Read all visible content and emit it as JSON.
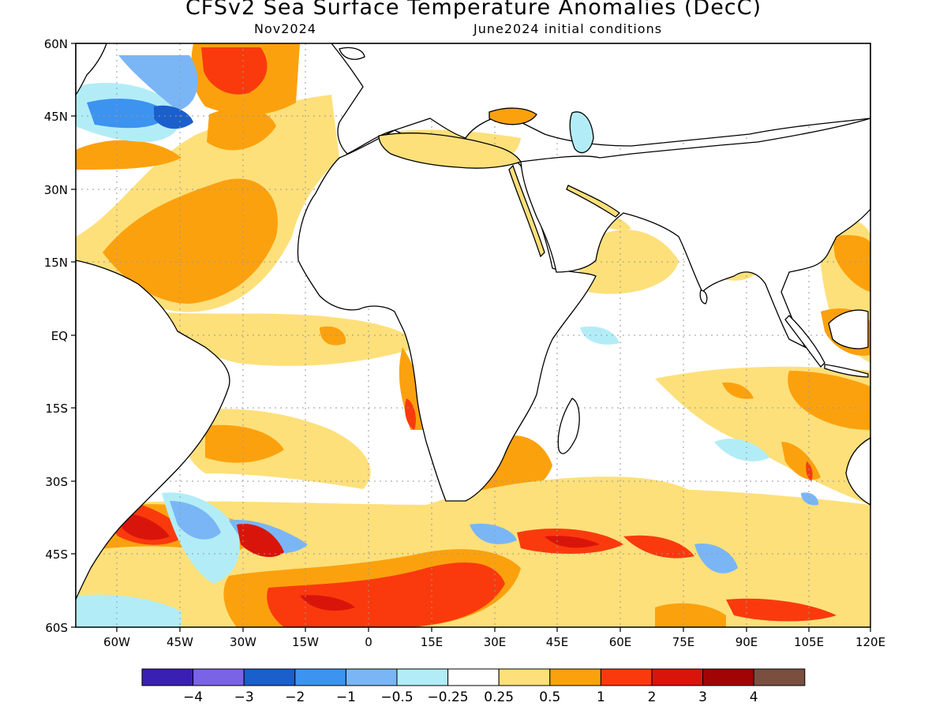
{
  "title": "CFSv2 Sea Surface Temperature Anomalies (DecC)",
  "subtitle_left": "Nov2024",
  "subtitle_right": "June2024 initial conditions",
  "lat_labels": [
    "60N",
    "45N",
    "30N",
    "15N",
    "EQ",
    "15S",
    "30S",
    "45S",
    "60S"
  ],
  "lon_labels": [
    "60W",
    "45W",
    "30W",
    "15W",
    "0",
    "15E",
    "30E",
    "45E",
    "60E",
    "75E",
    "90E",
    "105E",
    "120E"
  ],
  "colorbar": {
    "colors": [
      "#3a1fb5",
      "#7a63e6",
      "#1a5fcc",
      "#3c93f0",
      "#7ab6f5",
      "#b2edf7",
      "#ffffff",
      "#fde07a",
      "#fca10e",
      "#fa3a0d",
      "#d9150b",
      "#a10404",
      "#7a4f40"
    ],
    "labels": [
      "−4",
      "−3",
      "−2",
      "−1",
      "−0.5",
      "−0.25",
      "0.25",
      "0.5",
      "1",
      "2",
      "3",
      "4"
    ]
  }
}
